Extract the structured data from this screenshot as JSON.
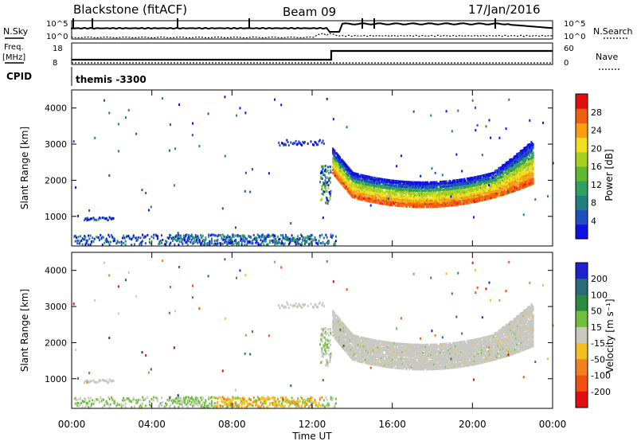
{
  "header": {
    "station": "Blackstone (fitACF)",
    "beam": "Beam 09",
    "date": "17/Jan/2016"
  },
  "top_panels": {
    "nsky_label": "N.Sky",
    "nsky_tick_hi": "10^5",
    "nsky_tick_lo": "10^0",
    "nsky_right_tick_hi": "10^5",
    "nsky_right_tick_lo": "10^0",
    "nsearch_label": "N.Search",
    "freq_label": "Freq.",
    "freq_unit": "[MHz]",
    "freq_tick_hi": "18",
    "freq_tick_lo": "8",
    "nave_tick_hi": "60",
    "nave_tick_lo": "0",
    "nave_label": "Nave",
    "cpid_label": "CPID",
    "cpid_value": "themis -3300"
  },
  "chart_data": [
    {
      "type": "heatmap",
      "name": "power",
      "xlabel": "",
      "ylabel": "Slant Range [km]",
      "x_ticks": [
        "00:00",
        "04:00",
        "08:00",
        "12:00",
        "16:00",
        "20:00",
        "00:00"
      ],
      "x_tick_hours": [
        0,
        4,
        8,
        12,
        16,
        20,
        24
      ],
      "y_ticks": [
        1000,
        2000,
        3000,
        4000
      ],
      "xlim": [
        0,
        24
      ],
      "ylim": [
        180,
        4500
      ],
      "colorbar": {
        "label": "Power [dB]",
        "ticks": [
          "28",
          "24",
          "20",
          "16",
          "12",
          "8",
          "4"
        ],
        "tick_values": [
          28,
          24,
          20,
          16,
          12,
          8,
          4
        ],
        "range": [
          0,
          32
        ],
        "colors": [
          "#1010e0",
          "#2050c0",
          "#208080",
          "#30a060",
          "#60b830",
          "#a8d020",
          "#f0e020",
          "#f8a010",
          "#f06010",
          "#e01010"
        ]
      }
    },
    {
      "type": "heatmap",
      "name": "velocity",
      "xlabel": "Time UT",
      "ylabel": "Slant Range [km]",
      "x_ticks": [
        "00:00",
        "04:00",
        "08:00",
        "12:00",
        "16:00",
        "20:00",
        "00:00"
      ],
      "x_tick_hours": [
        0,
        4,
        8,
        12,
        16,
        20,
        24
      ],
      "y_ticks": [
        1000,
        2000,
        3000,
        4000
      ],
      "xlim": [
        0,
        24
      ],
      "ylim": [
        180,
        4500
      ],
      "colorbar": {
        "label": "Velocity [m s⁻¹]",
        "ticks": [
          "200",
          "100",
          "50",
          "15",
          "-15",
          "-50",
          "-100",
          "-200"
        ],
        "levels": [
          {
            "range": "> 200",
            "color": "#2020d0"
          },
          {
            "range": "100 to 200",
            "color": "#2a6a7a"
          },
          {
            "range": "50 to 100",
            "color": "#2a8a40"
          },
          {
            "range": "15 to 50",
            "color": "#70c040"
          },
          {
            "range": "-15 to 15",
            "color": "#c8c8c0"
          },
          {
            "range": "-50 to -15",
            "color": "#f0c020"
          },
          {
            "range": "-100 to -50",
            "color": "#f08020"
          },
          {
            "range": "-200 to -100",
            "color": "#f05010"
          },
          {
            "range": "< -200",
            "color": "#e01010"
          }
        ]
      }
    }
  ]
}
